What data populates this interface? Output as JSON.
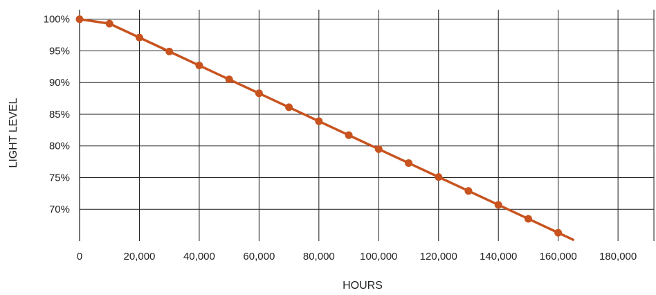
{
  "chart_data": {
    "type": "line",
    "xlabel": "HOURS",
    "ylabel": "LIGHT LEVEL",
    "xlim": [
      0,
      192000
    ],
    "ylim": [
      65,
      101.5
    ],
    "x_ticks": [
      0,
      20000,
      40000,
      60000,
      80000,
      100000,
      120000,
      140000,
      160000,
      180000
    ],
    "x_tick_labels": [
      "0",
      "20,000",
      "40,000",
      "60,000",
      "80,000",
      "100,000",
      "120,000",
      "140,000",
      "160,000",
      "180,000"
    ],
    "y_ticks": [
      100,
      95,
      90,
      85,
      80,
      75,
      70
    ],
    "y_tick_labels": [
      "100%",
      "95%",
      "90%",
      "85%",
      "80%",
      "75%",
      "70%"
    ],
    "grid": true,
    "color": "#c8531f",
    "series": [
      {
        "x": [
          0,
          10000,
          20000,
          30000,
          40000,
          50000,
          60000,
          70000,
          80000,
          90000,
          100000,
          110000,
          120000,
          130000,
          140000,
          150000,
          160000
        ],
        "values": [
          100,
          99.3,
          97.1,
          94.9,
          92.7,
          90.5,
          88.3,
          86.1,
          83.9,
          81.7,
          79.5,
          77.3,
          75.1,
          72.9,
          70.7,
          68.5,
          66.3
        ]
      }
    ],
    "line_end": {
      "x": 165000,
      "value": 65.2
    }
  }
}
